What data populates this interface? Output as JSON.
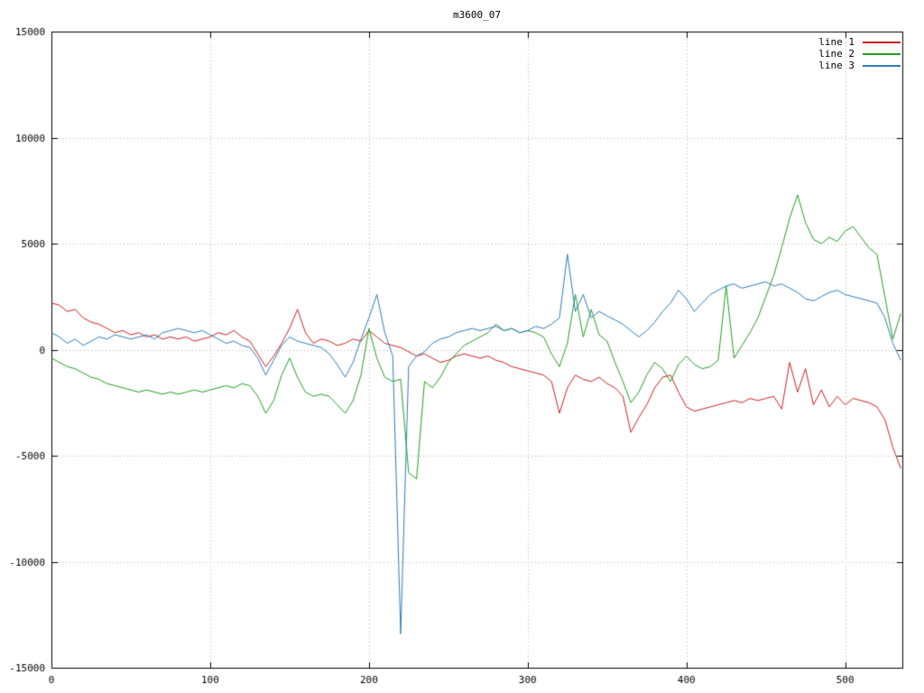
{
  "chart_data": {
    "type": "line",
    "title": "m3600_07",
    "xlabel": "",
    "ylabel": "",
    "xlim": [
      0,
      536
    ],
    "ylim": [
      -15000,
      15000
    ],
    "x_ticks": [
      0,
      100,
      200,
      300,
      400,
      500
    ],
    "y_ticks": [
      -15000,
      -10000,
      -5000,
      0,
      5000,
      10000,
      15000
    ],
    "grid": true,
    "grid_style": "dotted",
    "legend_position": "top-right",
    "background_color": "#ffffff",
    "grid_color": "#b4b4b4",
    "border_color": "#000000",
    "x_start": 0,
    "x_step": 5,
    "series": [
      {
        "name": "line 1",
        "color": "#cc2222",
        "values": [
          2200,
          2100,
          1800,
          1900,
          1500,
          1300,
          1200,
          1000,
          800,
          900,
          700,
          800,
          600,
          700,
          500,
          600,
          500,
          600,
          400,
          500,
          600,
          800,
          700,
          900,
          600,
          400,
          -200,
          -800,
          -300,
          300,
          1000,
          1900,
          800,
          300,
          500,
          400,
          200,
          300,
          500,
          400,
          900,
          600,
          300,
          200,
          100,
          -100,
          -300,
          -200,
          -400,
          -600,
          -500,
          -300,
          -200,
          -300,
          -400,
          -300,
          -500,
          -600,
          -800,
          -900,
          -1000,
          -1100,
          -1200,
          -1500,
          -3000,
          -1800,
          -1200,
          -1400,
          -1500,
          -1300,
          -1600,
          -1800,
          -2200,
          -3900,
          -3200,
          -2600,
          -1800,
          -1300,
          -1200,
          -2000,
          -2700,
          -2900,
          -2800,
          -2700,
          -2600,
          -2500,
          -2400,
          -2500,
          -2300,
          -2400,
          -2300,
          -2200,
          -2800,
          -600,
          -2000,
          -900,
          -2600,
          -1900,
          -2700,
          -2200,
          -2600,
          -2300,
          -2400,
          -2500,
          -2700,
          -3300,
          -4600,
          -5600
        ]
      },
      {
        "name": "line 2",
        "color": "#22a022",
        "values": [
          -400,
          -600,
          -800,
          -900,
          -1100,
          -1300,
          -1400,
          -1600,
          -1700,
          -1800,
          -1900,
          -2000,
          -1900,
          -2000,
          -2100,
          -2000,
          -2100,
          -2000,
          -1900,
          -2000,
          -1900,
          -1800,
          -1700,
          -1800,
          -1600,
          -1700,
          -2200,
          -3000,
          -2400,
          -1200,
          -400,
          -1300,
          -2000,
          -2200,
          -2100,
          -2200,
          -2600,
          -3000,
          -2400,
          -1200,
          1000,
          -400,
          -1300,
          -1500,
          -1400,
          -5800,
          -6100,
          -1500,
          -1800,
          -1300,
          -600,
          -200,
          200,
          400,
          600,
          800,
          1200,
          900,
          1000,
          800,
          900,
          800,
          600,
          -200,
          -800,
          300,
          2600,
          600,
          1900,
          700,
          400,
          -600,
          -1500,
          -2500,
          -2000,
          -1200,
          -600,
          -900,
          -1500,
          -700,
          -300,
          -700,
          -900,
          -800,
          -500,
          3000,
          -400,
          200,
          800,
          1500,
          2500,
          3500,
          4800,
          6200,
          7300,
          6000,
          5200,
          5000,
          5300,
          5100,
          5600,
          5800,
          5300,
          4800,
          4500,
          2500,
          500,
          1700
        ]
      },
      {
        "name": "line 3",
        "color": "#2e7eb8",
        "values": [
          800,
          600,
          300,
          500,
          200,
          400,
          600,
          500,
          700,
          600,
          500,
          600,
          700,
          500,
          800,
          900,
          1000,
          900,
          800,
          900,
          700,
          500,
          300,
          400,
          200,
          100,
          -400,
          -1200,
          -500,
          200,
          600,
          400,
          300,
          200,
          100,
          -200,
          -700,
          -1300,
          -600,
          500,
          1500,
          2600,
          800,
          -300,
          -13400,
          -800,
          -300,
          -100,
          300,
          500,
          600,
          800,
          900,
          1000,
          900,
          1000,
          1100,
          900,
          1000,
          800,
          900,
          1100,
          1000,
          1200,
          1500,
          4500,
          1800,
          2600,
          1500,
          1800,
          1600,
          1400,
          1200,
          900,
          600,
          900,
          1300,
          1800,
          2200,
          2800,
          2400,
          1800,
          2200,
          2600,
          2800,
          3000,
          3100,
          2900,
          3000,
          3100,
          3200,
          3000,
          3100,
          2900,
          2700,
          2400,
          2300,
          2500,
          2700,
          2800,
          2600,
          2500,
          2400,
          2300,
          2200,
          1500,
          300,
          -500
        ]
      }
    ]
  }
}
